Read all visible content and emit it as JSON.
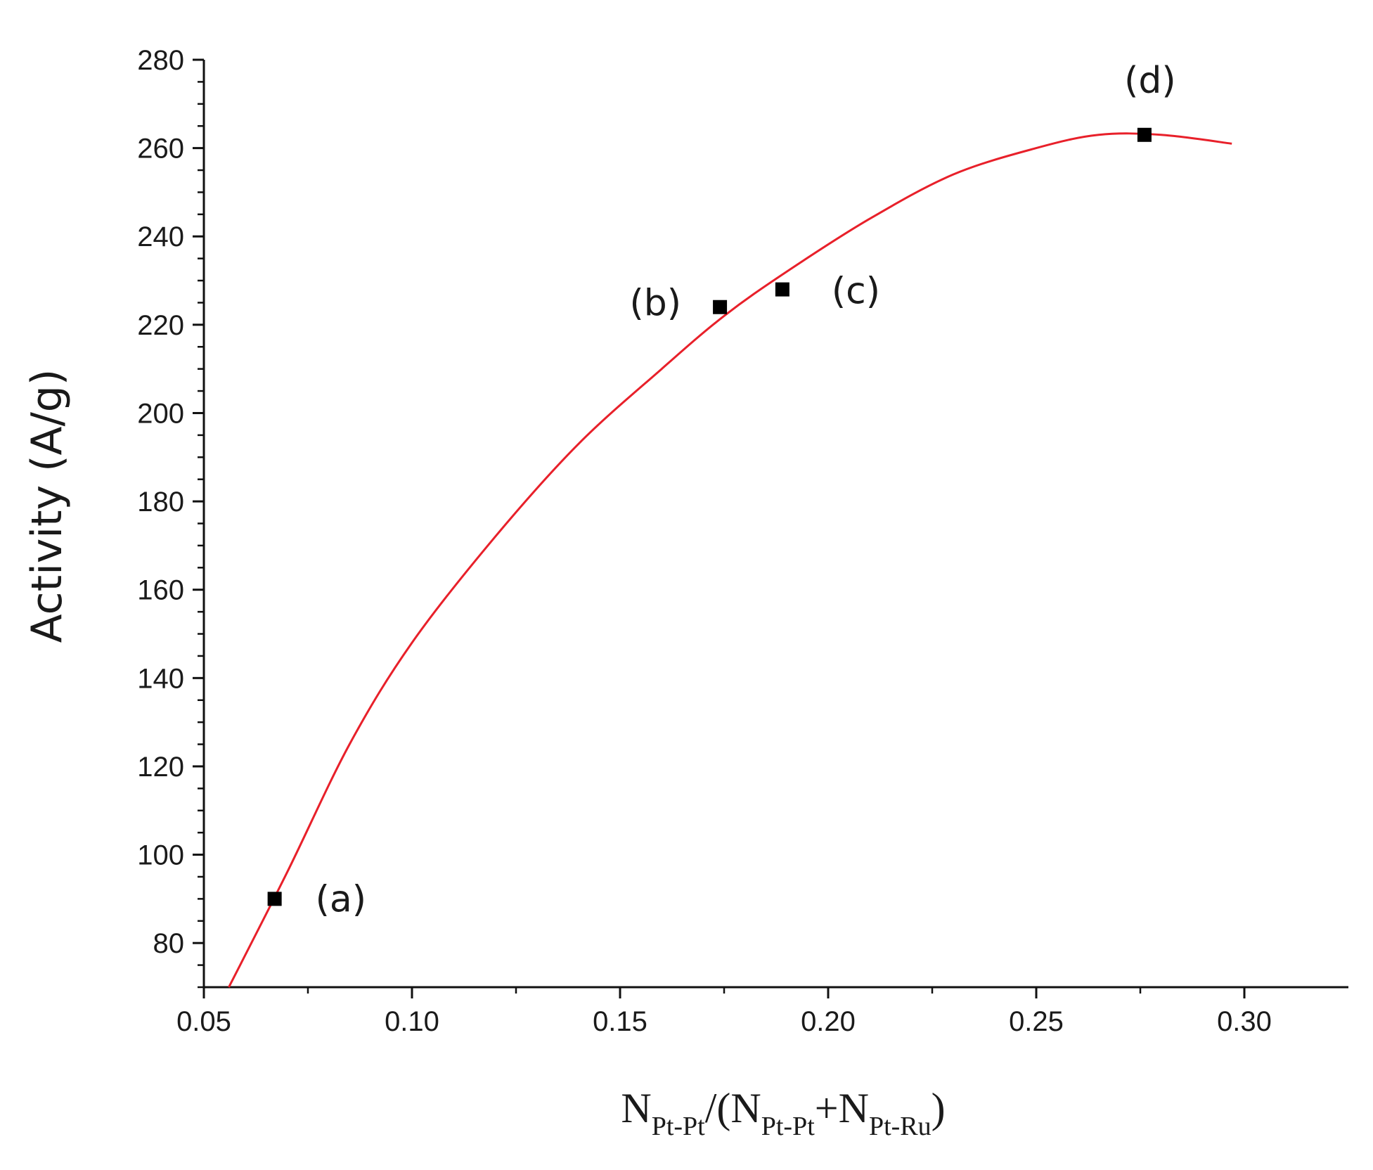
{
  "chart_data": {
    "type": "scatter",
    "xlabel": {
      "parts": [
        {
          "text": "N",
          "sub": false
        },
        {
          "text": "Pt-Pt",
          "sub": true
        },
        {
          "text": "/(N",
          "sub": false
        },
        {
          "text": "Pt-Pt",
          "sub": true
        },
        {
          "text": "+N",
          "sub": false
        },
        {
          "text": "Pt-Ru",
          "sub": true
        },
        {
          "text": ")",
          "sub": false
        }
      ]
    },
    "ylabel": "Activity (A/g)",
    "xlim": [
      0.05,
      0.325
    ],
    "ylim": [
      70,
      280
    ],
    "x_ticks": [
      "0.05",
      "0.10",
      "0.15",
      "0.20",
      "0.25",
      "0.30"
    ],
    "y_ticks": [
      "80",
      "100",
      "120",
      "140",
      "160",
      "180",
      "200",
      "220",
      "240",
      "260",
      "280"
    ],
    "grid": false,
    "series": [
      {
        "marker": "square",
        "color": "#000000",
        "points": [
          {
            "x": 0.067,
            "y": 90,
            "label": "(a)"
          },
          {
            "x": 0.174,
            "y": 224,
            "label": "(b)"
          },
          {
            "x": 0.189,
            "y": 228,
            "label": "(c)"
          },
          {
            "x": 0.276,
            "y": 263,
            "label": "(d)"
          }
        ]
      },
      {
        "type": "line",
        "color": "#e8202a",
        "x": [
          0.056,
          0.07,
          0.085,
          0.1,
          0.12,
          0.14,
          0.16,
          0.175,
          0.19,
          0.21,
          0.23,
          0.25,
          0.265,
          0.28,
          0.297
        ],
        "y": [
          70,
          96,
          125,
          148,
          172,
          193,
          210,
          222,
          232,
          244,
          254,
          260,
          263,
          263,
          261
        ]
      }
    ]
  }
}
